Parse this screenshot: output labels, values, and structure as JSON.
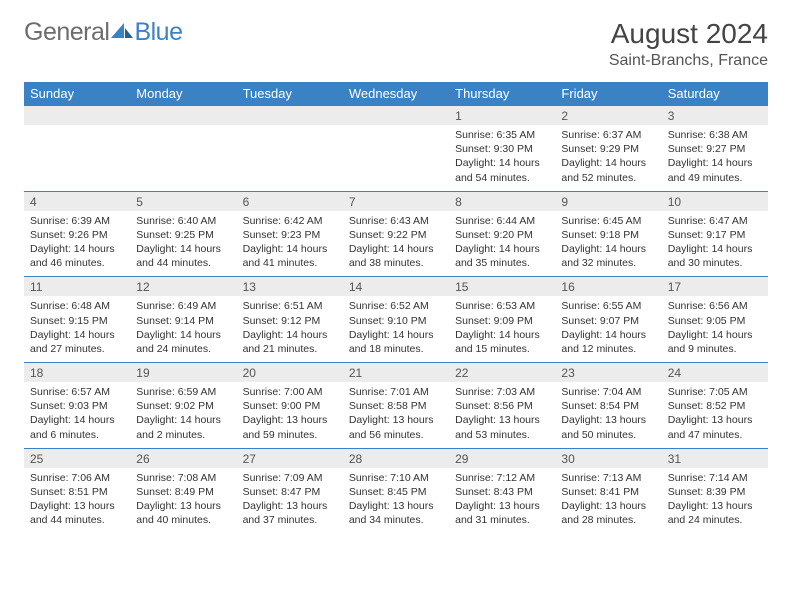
{
  "brand": {
    "part1": "General",
    "part2": "Blue"
  },
  "title": "August 2024",
  "location": "Saint-Branchs, France",
  "day_headers": [
    "Sunday",
    "Monday",
    "Tuesday",
    "Wednesday",
    "Thursday",
    "Friday",
    "Saturday"
  ],
  "colors": {
    "header_bg": "#3b82c4",
    "header_fg": "#ffffff",
    "daynum_bg": "#ececec",
    "row_border": "#3b82c4",
    "logo_gray": "#6d6d6d",
    "logo_blue": "#3b82c4"
  },
  "weeks": [
    {
      "days": [
        {
          "num": "",
          "sunrise": "",
          "sunset": "",
          "daylight": ""
        },
        {
          "num": "",
          "sunrise": "",
          "sunset": "",
          "daylight": ""
        },
        {
          "num": "",
          "sunrise": "",
          "sunset": "",
          "daylight": ""
        },
        {
          "num": "",
          "sunrise": "",
          "sunset": "",
          "daylight": ""
        },
        {
          "num": "1",
          "sunrise": "Sunrise: 6:35 AM",
          "sunset": "Sunset: 9:30 PM",
          "daylight": "Daylight: 14 hours and 54 minutes."
        },
        {
          "num": "2",
          "sunrise": "Sunrise: 6:37 AM",
          "sunset": "Sunset: 9:29 PM",
          "daylight": "Daylight: 14 hours and 52 minutes."
        },
        {
          "num": "3",
          "sunrise": "Sunrise: 6:38 AM",
          "sunset": "Sunset: 9:27 PM",
          "daylight": "Daylight: 14 hours and 49 minutes."
        }
      ]
    },
    {
      "days": [
        {
          "num": "4",
          "sunrise": "Sunrise: 6:39 AM",
          "sunset": "Sunset: 9:26 PM",
          "daylight": "Daylight: 14 hours and 46 minutes."
        },
        {
          "num": "5",
          "sunrise": "Sunrise: 6:40 AM",
          "sunset": "Sunset: 9:25 PM",
          "daylight": "Daylight: 14 hours and 44 minutes."
        },
        {
          "num": "6",
          "sunrise": "Sunrise: 6:42 AM",
          "sunset": "Sunset: 9:23 PM",
          "daylight": "Daylight: 14 hours and 41 minutes."
        },
        {
          "num": "7",
          "sunrise": "Sunrise: 6:43 AM",
          "sunset": "Sunset: 9:22 PM",
          "daylight": "Daylight: 14 hours and 38 minutes."
        },
        {
          "num": "8",
          "sunrise": "Sunrise: 6:44 AM",
          "sunset": "Sunset: 9:20 PM",
          "daylight": "Daylight: 14 hours and 35 minutes."
        },
        {
          "num": "9",
          "sunrise": "Sunrise: 6:45 AM",
          "sunset": "Sunset: 9:18 PM",
          "daylight": "Daylight: 14 hours and 32 minutes."
        },
        {
          "num": "10",
          "sunrise": "Sunrise: 6:47 AM",
          "sunset": "Sunset: 9:17 PM",
          "daylight": "Daylight: 14 hours and 30 minutes."
        }
      ]
    },
    {
      "days": [
        {
          "num": "11",
          "sunrise": "Sunrise: 6:48 AM",
          "sunset": "Sunset: 9:15 PM",
          "daylight": "Daylight: 14 hours and 27 minutes."
        },
        {
          "num": "12",
          "sunrise": "Sunrise: 6:49 AM",
          "sunset": "Sunset: 9:14 PM",
          "daylight": "Daylight: 14 hours and 24 minutes."
        },
        {
          "num": "13",
          "sunrise": "Sunrise: 6:51 AM",
          "sunset": "Sunset: 9:12 PM",
          "daylight": "Daylight: 14 hours and 21 minutes."
        },
        {
          "num": "14",
          "sunrise": "Sunrise: 6:52 AM",
          "sunset": "Sunset: 9:10 PM",
          "daylight": "Daylight: 14 hours and 18 minutes."
        },
        {
          "num": "15",
          "sunrise": "Sunrise: 6:53 AM",
          "sunset": "Sunset: 9:09 PM",
          "daylight": "Daylight: 14 hours and 15 minutes."
        },
        {
          "num": "16",
          "sunrise": "Sunrise: 6:55 AM",
          "sunset": "Sunset: 9:07 PM",
          "daylight": "Daylight: 14 hours and 12 minutes."
        },
        {
          "num": "17",
          "sunrise": "Sunrise: 6:56 AM",
          "sunset": "Sunset: 9:05 PM",
          "daylight": "Daylight: 14 hours and 9 minutes."
        }
      ]
    },
    {
      "days": [
        {
          "num": "18",
          "sunrise": "Sunrise: 6:57 AM",
          "sunset": "Sunset: 9:03 PM",
          "daylight": "Daylight: 14 hours and 6 minutes."
        },
        {
          "num": "19",
          "sunrise": "Sunrise: 6:59 AM",
          "sunset": "Sunset: 9:02 PM",
          "daylight": "Daylight: 14 hours and 2 minutes."
        },
        {
          "num": "20",
          "sunrise": "Sunrise: 7:00 AM",
          "sunset": "Sunset: 9:00 PM",
          "daylight": "Daylight: 13 hours and 59 minutes."
        },
        {
          "num": "21",
          "sunrise": "Sunrise: 7:01 AM",
          "sunset": "Sunset: 8:58 PM",
          "daylight": "Daylight: 13 hours and 56 minutes."
        },
        {
          "num": "22",
          "sunrise": "Sunrise: 7:03 AM",
          "sunset": "Sunset: 8:56 PM",
          "daylight": "Daylight: 13 hours and 53 minutes."
        },
        {
          "num": "23",
          "sunrise": "Sunrise: 7:04 AM",
          "sunset": "Sunset: 8:54 PM",
          "daylight": "Daylight: 13 hours and 50 minutes."
        },
        {
          "num": "24",
          "sunrise": "Sunrise: 7:05 AM",
          "sunset": "Sunset: 8:52 PM",
          "daylight": "Daylight: 13 hours and 47 minutes."
        }
      ]
    },
    {
      "days": [
        {
          "num": "25",
          "sunrise": "Sunrise: 7:06 AM",
          "sunset": "Sunset: 8:51 PM",
          "daylight": "Daylight: 13 hours and 44 minutes."
        },
        {
          "num": "26",
          "sunrise": "Sunrise: 7:08 AM",
          "sunset": "Sunset: 8:49 PM",
          "daylight": "Daylight: 13 hours and 40 minutes."
        },
        {
          "num": "27",
          "sunrise": "Sunrise: 7:09 AM",
          "sunset": "Sunset: 8:47 PM",
          "daylight": "Daylight: 13 hours and 37 minutes."
        },
        {
          "num": "28",
          "sunrise": "Sunrise: 7:10 AM",
          "sunset": "Sunset: 8:45 PM",
          "daylight": "Daylight: 13 hours and 34 minutes."
        },
        {
          "num": "29",
          "sunrise": "Sunrise: 7:12 AM",
          "sunset": "Sunset: 8:43 PM",
          "daylight": "Daylight: 13 hours and 31 minutes."
        },
        {
          "num": "30",
          "sunrise": "Sunrise: 7:13 AM",
          "sunset": "Sunset: 8:41 PM",
          "daylight": "Daylight: 13 hours and 28 minutes."
        },
        {
          "num": "31",
          "sunrise": "Sunrise: 7:14 AM",
          "sunset": "Sunset: 8:39 PM",
          "daylight": "Daylight: 13 hours and 24 minutes."
        }
      ]
    }
  ]
}
